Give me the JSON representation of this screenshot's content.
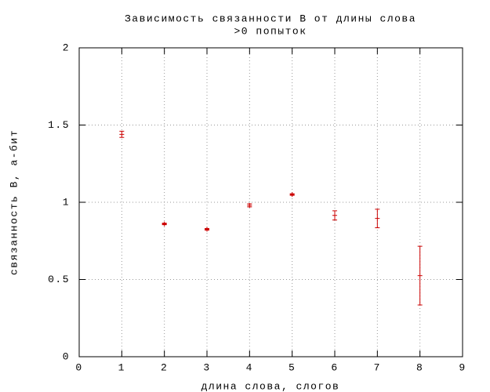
{
  "chart_data": {
    "type": "errorbar",
    "title": "Зависимость связанности B от длины слова",
    "subtitle": ">0 попыток",
    "x_label": "длина слова, слогов",
    "y_label": "связанность B, а-бит",
    "x": [
      1,
      2,
      3,
      4,
      5,
      6,
      7,
      8
    ],
    "series": [
      {
        "color": "#cc0000",
        "values": [
          1.44,
          0.86,
          0.825,
          0.98,
          1.05,
          0.915,
          0.895,
          0.525
        ],
        "errors": [
          0.02,
          0.005,
          0.005,
          0.01,
          0.005,
          0.03,
          0.06,
          0.19
        ]
      }
    ],
    "xlim": [
      0,
      9
    ],
    "xticks": [
      0,
      1,
      2,
      3,
      4,
      5,
      6,
      7,
      8,
      9
    ],
    "ylim": [
      0,
      2
    ],
    "yticks": [
      0,
      0.5,
      1,
      1.5,
      2
    ],
    "grid": true
  }
}
